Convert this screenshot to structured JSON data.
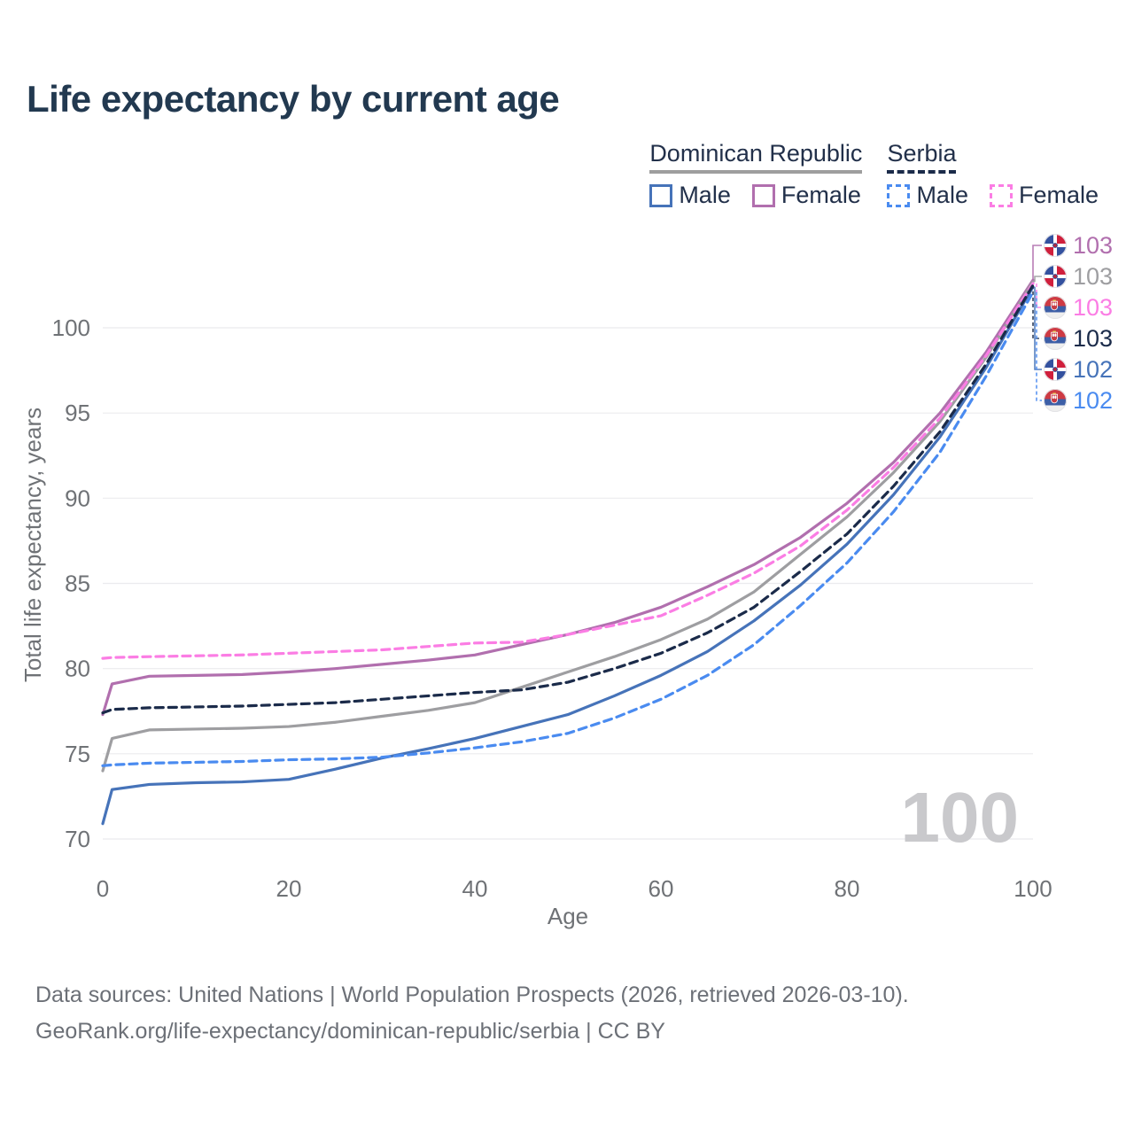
{
  "title": "Life expectancy by current age",
  "legend": {
    "groups": [
      {
        "name": "Dominican Republic",
        "underline_style": "solid",
        "underline_color": "#9e9e9e",
        "items": [
          {
            "label": "Male",
            "series_ref": "dr-male"
          },
          {
            "label": "Female",
            "series_ref": "dr-female"
          }
        ]
      },
      {
        "name": "Serbia",
        "underline_style": "dashed",
        "underline_color": "#1b2b4a",
        "items": [
          {
            "label": "Male",
            "series_ref": "rs-male"
          },
          {
            "label": "Female",
            "series_ref": "rs-female"
          }
        ]
      }
    ]
  },
  "watermark": {
    "age_indicator": "100",
    "color": "#c9c9cc"
  },
  "chart_data": {
    "type": "line",
    "title": "Life expectancy by current age",
    "xlabel": "Age",
    "ylabel": "Total life expectancy, years",
    "xlim": [
      0,
      100
    ],
    "ylim": [
      70,
      103
    ],
    "x_ticks": [
      0,
      20,
      40,
      60,
      80,
      100
    ],
    "y_ticks": [
      70,
      75,
      80,
      85,
      90,
      95,
      100
    ],
    "grid": "horizontal",
    "legend_position": "top-right",
    "x": [
      0,
      1,
      5,
      10,
      15,
      20,
      25,
      30,
      35,
      40,
      45,
      50,
      55,
      60,
      65,
      70,
      75,
      80,
      85,
      90,
      95,
      100
    ],
    "series": [
      {
        "id": "dr-female",
        "name": "Dominican Republic Female",
        "country": "Dominican Republic",
        "sex": "Female",
        "color": "#b16fae",
        "dash": false,
        "flag": "dominican-republic",
        "end_label": "103",
        "values": [
          77.3,
          79.1,
          79.55,
          79.6,
          79.65,
          79.8,
          80.0,
          80.25,
          80.5,
          80.8,
          81.4,
          82.0,
          82.7,
          83.6,
          84.8,
          86.1,
          87.7,
          89.7,
          92.1,
          95.0,
          98.6,
          102.8
        ]
      },
      {
        "id": "dr-total",
        "name": "Dominican Republic Total",
        "country": "Dominican Republic",
        "sex": "Both",
        "color": "#9e9ea1",
        "dash": false,
        "flag": "dominican-republic",
        "end_label": "103",
        "values": [
          74.0,
          75.9,
          76.4,
          76.45,
          76.5,
          76.6,
          76.85,
          77.2,
          77.55,
          78.0,
          78.9,
          79.8,
          80.7,
          81.7,
          82.9,
          84.5,
          86.7,
          88.9,
          91.5,
          94.5,
          98.3,
          102.7
        ]
      },
      {
        "id": "rs-female",
        "name": "Serbia Female",
        "country": "Serbia",
        "sex": "Female",
        "color": "#fb7de4",
        "dash": true,
        "flag": "serbia",
        "end_label": "103",
        "values": [
          80.6,
          80.65,
          80.7,
          80.75,
          80.8,
          80.9,
          81.0,
          81.1,
          81.3,
          81.5,
          81.55,
          82.0,
          82.55,
          83.1,
          84.3,
          85.6,
          87.2,
          89.3,
          91.8,
          94.7,
          98.4,
          102.6
        ]
      },
      {
        "id": "rs-total",
        "name": "Serbia Total",
        "country": "Serbia",
        "sex": "Both",
        "color": "#1b2b4a",
        "dash": true,
        "flag": "serbia",
        "end_label": "103",
        "values": [
          77.4,
          77.6,
          77.7,
          77.75,
          77.8,
          77.9,
          78.0,
          78.2,
          78.4,
          78.6,
          78.75,
          79.2,
          80.0,
          80.9,
          82.1,
          83.6,
          85.7,
          87.9,
          90.7,
          93.9,
          97.9,
          102.5
        ]
      },
      {
        "id": "dr-male",
        "name": "Dominican Republic Male",
        "country": "Dominican Republic",
        "sex": "Male",
        "color": "#4673b9",
        "dash": false,
        "flag": "dominican-republic",
        "end_label": "102",
        "values": [
          70.9,
          72.9,
          73.2,
          73.3,
          73.35,
          73.5,
          74.1,
          74.75,
          75.3,
          75.9,
          76.6,
          77.3,
          78.4,
          79.6,
          81.0,
          82.8,
          84.9,
          87.3,
          90.2,
          93.6,
          97.7,
          102.4
        ]
      },
      {
        "id": "rs-male",
        "name": "Serbia Male",
        "country": "Serbia",
        "sex": "Male",
        "color": "#4a8bf0",
        "dash": true,
        "flag": "serbia",
        "end_label": "102",
        "values": [
          74.3,
          74.35,
          74.45,
          74.5,
          74.55,
          74.65,
          74.7,
          74.8,
          75.05,
          75.35,
          75.7,
          76.2,
          77.1,
          78.2,
          79.6,
          81.4,
          83.7,
          86.2,
          89.2,
          92.7,
          97.2,
          102.1
        ]
      }
    ]
  },
  "footer": {
    "line1": "Data sources: United Nations | World Population Prospects (2026, retrieved 2026-03-10).",
    "line2": "GeoRank.org/life-expectancy/dominican-republic/serbia | CC BY"
  },
  "style": {
    "grid_color": "#ebebee",
    "tick_color": "#6f7276",
    "title_color": "#223950"
  }
}
